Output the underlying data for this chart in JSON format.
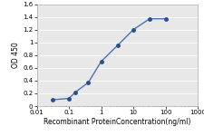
{
  "x_data": [
    0.032,
    0.1,
    0.16,
    0.4,
    1.0,
    3.2,
    10.0,
    32.0,
    100.0
  ],
  "y_data": [
    0.1,
    0.12,
    0.22,
    0.37,
    0.7,
    0.95,
    1.2,
    1.37,
    1.37
  ],
  "line_color": "#4C72B0",
  "marker_color": "#2C4E8A",
  "marker_style": "o",
  "marker_size": 2.5,
  "xlabel": "Recombinant ProteinConcentration(ng/ml)",
  "ylabel": "OD 450",
  "xlim": [
    0.01,
    1000
  ],
  "ylim": [
    0,
    1.6
  ],
  "yticks": [
    0,
    0.2,
    0.4,
    0.6,
    0.8,
    1.0,
    1.2,
    1.4,
    1.6
  ],
  "xticks": [
    0.01,
    0.1,
    1,
    10,
    100,
    1000
  ],
  "xtick_labels": [
    "0.01",
    "0.1",
    "1",
    "10",
    "100",
    "1000"
  ],
  "ytick_labels": [
    "0",
    "0.2",
    "0.4",
    "0.6",
    "0.8",
    "1",
    "1.2",
    "1.4",
    "1.6"
  ],
  "background_color": "#e8e8e8",
  "grid_color": "#ffffff",
  "axis_fontsize": 5.5,
  "tick_fontsize": 5.0,
  "line_width": 1.0
}
